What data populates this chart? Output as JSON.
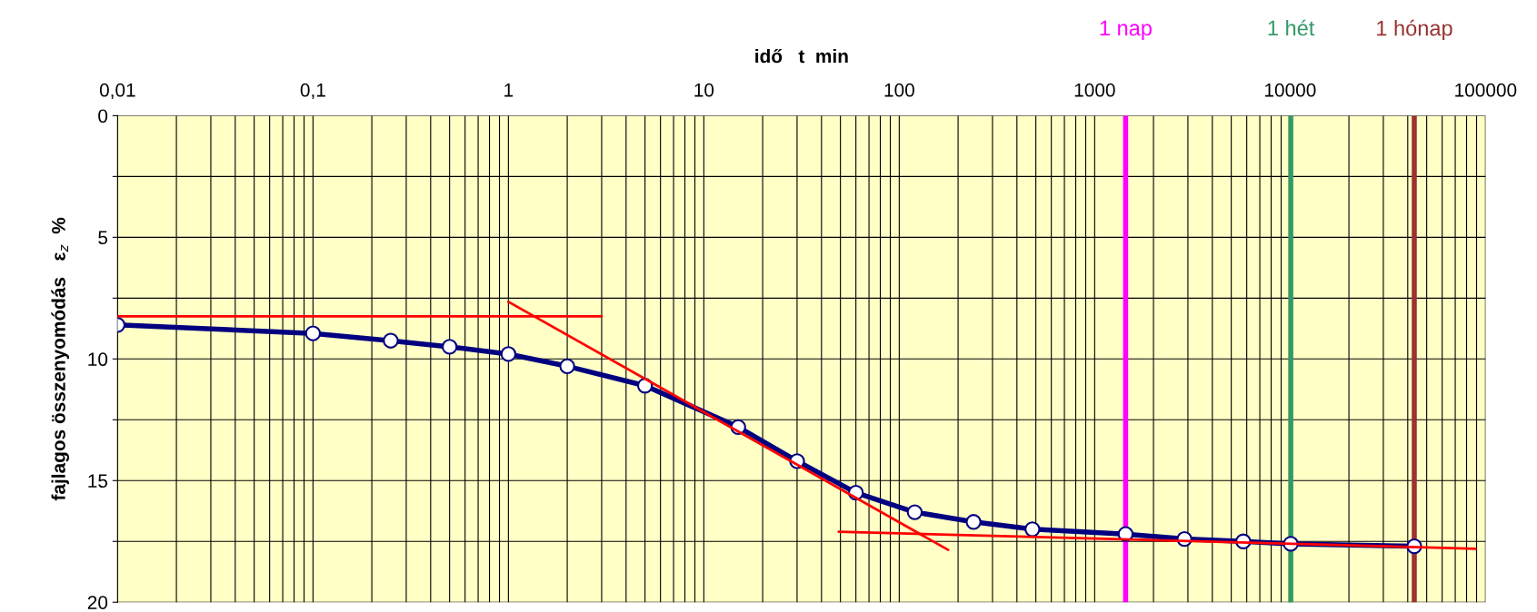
{
  "chart_data": {
    "type": "line",
    "xlabel": "idő   t  min",
    "ylabel": "fajlagos összenyomódás   ε$_{z}$  %",
    "log": "x",
    "xlim": [
      0.01,
      100000
    ],
    "xticks": [
      {
        "value": 0.01,
        "label": "0,01"
      },
      {
        "value": 0.1,
        "label": "0,1"
      },
      1,
      10,
      100,
      1000,
      10000,
      100000
    ],
    "ylim": [
      20,
      0
    ],
    "yticks": [
      0,
      {
        "value": 2.5,
        "label": null
      },
      5,
      {
        "value": 7.5,
        "label": null
      },
      10,
      {
        "value": 12.5,
        "label": null
      },
      15,
      {
        "value": 17.5,
        "label": null
      },
      20
    ],
    "grid": true,
    "series": [
      {
        "color": "#ff0000",
        "marker": "none",
        "x": [
          0.01,
          3
        ],
        "values": [
          8.25,
          8.25
        ]
      },
      {
        "color": "#ff0000",
        "marker": "none",
        "x": [
          1,
          178
        ],
        "values": [
          7.65,
          17.85
        ]
      },
      {
        "color": "#ff0000",
        "marker": "none",
        "x": [
          49,
          89000
        ],
        "values": [
          17.1,
          17.8
        ]
      },
      {
        "color": "#000080",
        "marker": "circle",
        "x": [
          0.01,
          0.1,
          0.25,
          0.5,
          1,
          2,
          5,
          15,
          30,
          60,
          120,
          240,
          480,
          1440,
          2880,
          5760,
          10080,
          43200
        ],
        "values": [
          8.6,
          8.95,
          9.25,
          9.5,
          9.8,
          10.3,
          11.1,
          12.8,
          14.2,
          15.5,
          16.3,
          16.7,
          17.0,
          17.2,
          17.4,
          17.5,
          17.6,
          17.7
        ]
      }
    ],
    "ref_lines": [
      {
        "axis": "x",
        "value": 1440,
        "label": "1 nap",
        "color": "#ff00ff"
      },
      {
        "axis": "x",
        "value": 10080,
        "label": "1 hét",
        "color": "#339966"
      },
      {
        "axis": "x",
        "value": 43200,
        "label": "1 hónap",
        "color": "#993333"
      }
    ]
  }
}
